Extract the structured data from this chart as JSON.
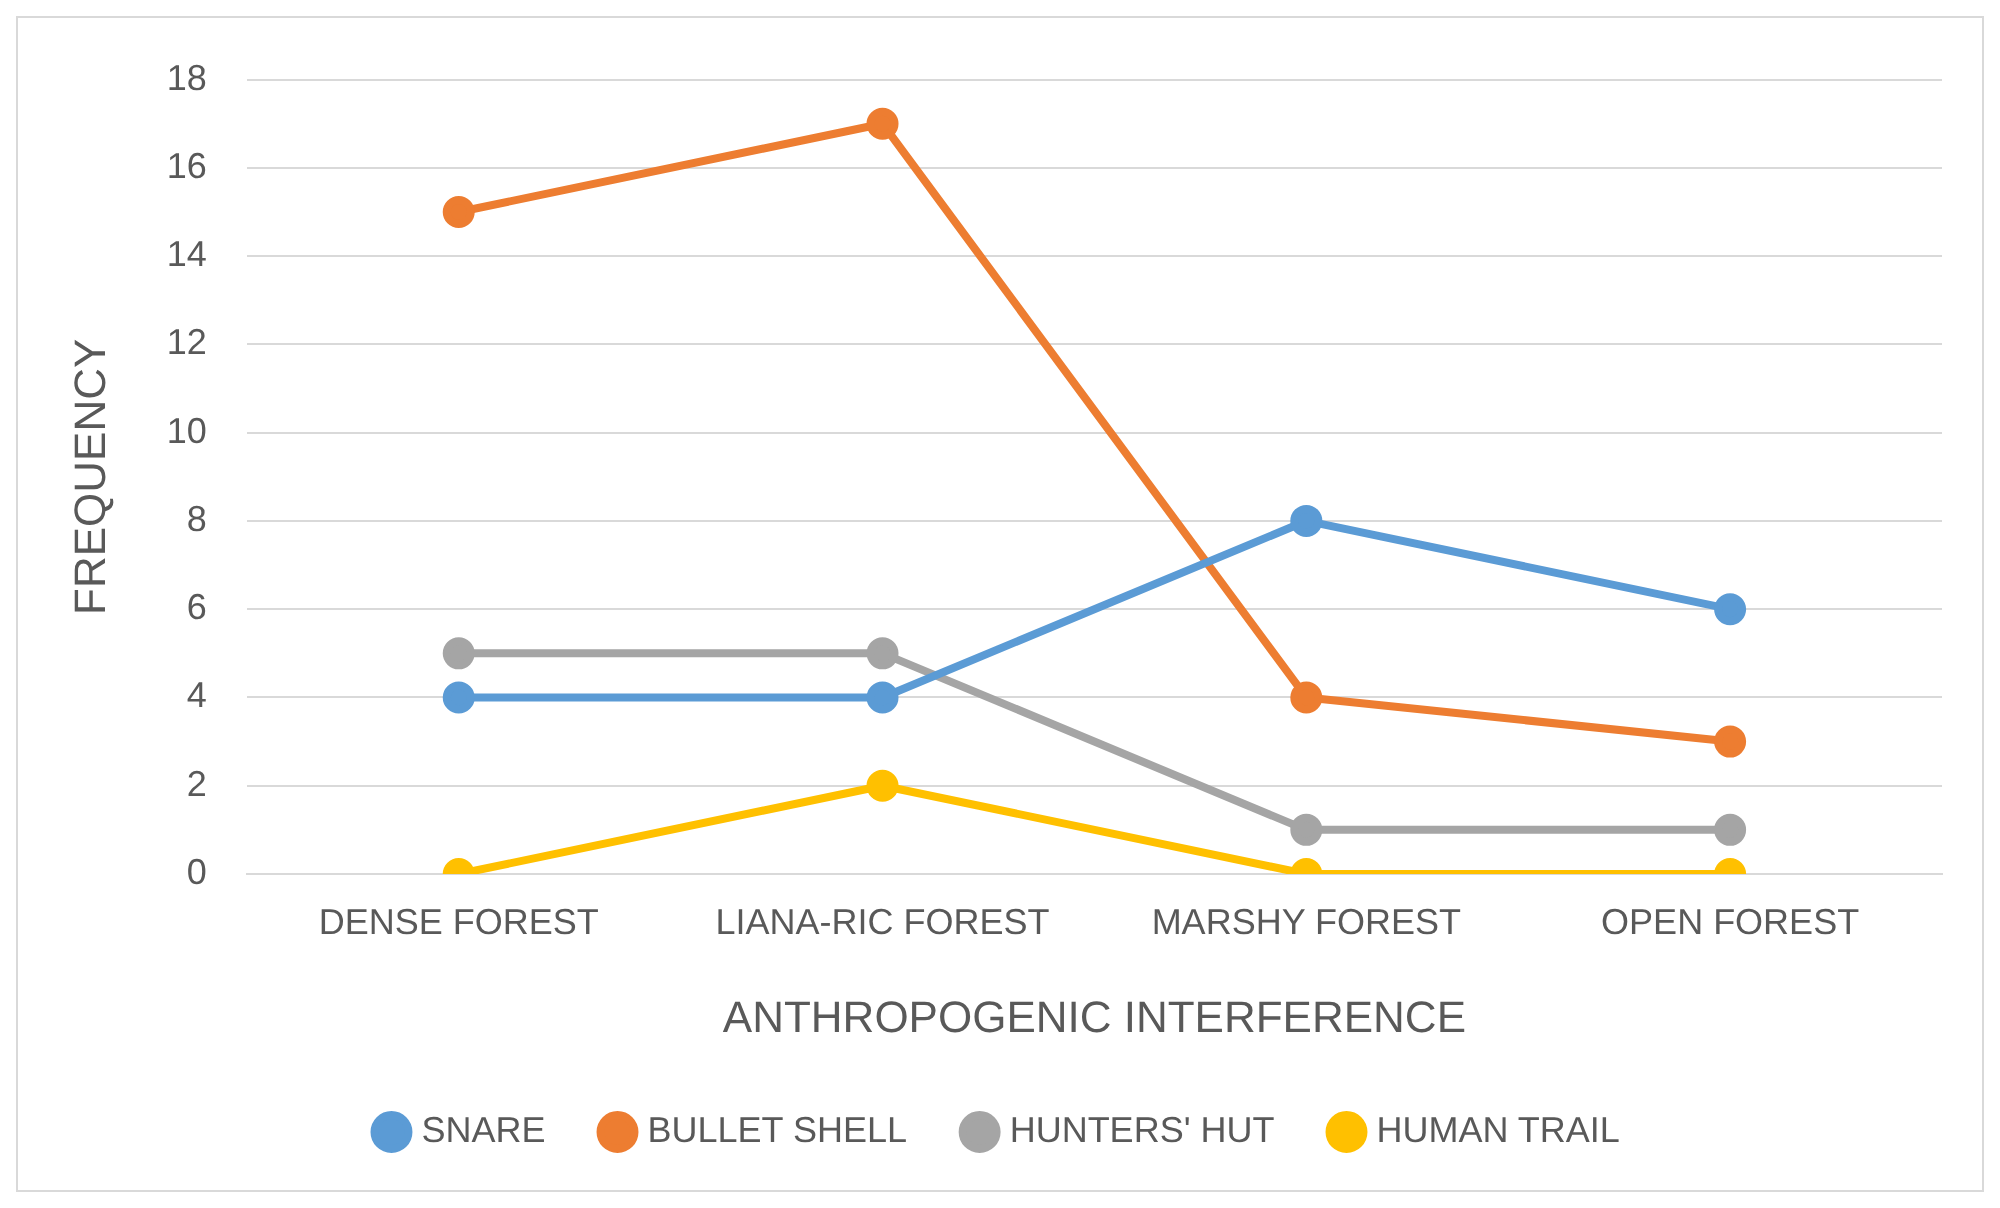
{
  "chart_data": {
    "type": "line",
    "xlabel": "ANTHROPOGENIC INTERFERENCE",
    "ylabel": "FREQUENCY",
    "categories": [
      "DENSE FOREST",
      "LIANA-RIC FOREST",
      "MARSHY FOREST",
      "OPEN FOREST"
    ],
    "series": [
      {
        "name": "SNARE",
        "color": "#5b9bd5",
        "values": [
          4,
          4,
          8,
          6
        ]
      },
      {
        "name": "BULLET SHELL",
        "color": "#ed7d31",
        "values": [
          15,
          17,
          4,
          3
        ]
      },
      {
        "name": "HUNTERS' HUT",
        "color": "#a5a5a5",
        "values": [
          5,
          5,
          1,
          1
        ]
      },
      {
        "name": "HUMAN TRAIL",
        "color": "#ffc000",
        "values": [
          0,
          2,
          0,
          0
        ]
      }
    ],
    "ylim": [
      0,
      18
    ],
    "yticks": [
      0,
      2,
      4,
      6,
      8,
      10,
      12,
      14,
      16,
      18
    ],
    "grid": "y",
    "legend": "bottom",
    "marker": "circle",
    "line_style": "solid"
  }
}
